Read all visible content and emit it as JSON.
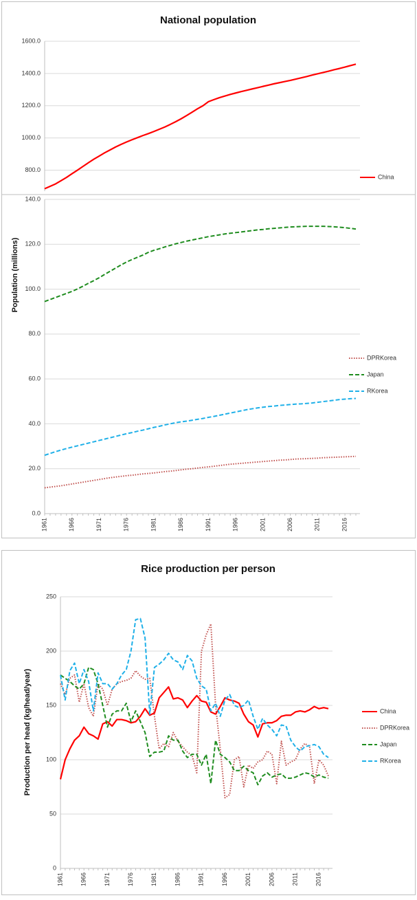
{
  "chart_data": [
    {
      "type": "line",
      "title": "National population",
      "ylim": [
        670,
        1600
      ],
      "yticks": [
        {
          "value": 800,
          "label": "800.0"
        },
        {
          "value": 1000,
          "label": "1000.0"
        },
        {
          "value": 1200,
          "label": "1200.0"
        },
        {
          "value": 1400,
          "label": "1400.0"
        },
        {
          "value": 1600,
          "label": "1600.0"
        }
      ],
      "grid": true,
      "legend": "right",
      "series": [
        {
          "name": "China",
          "color": "#ff0000",
          "dash": "solid",
          "values": [
            685,
            700,
            715,
            735,
            755,
            778,
            800,
            823,
            846,
            868,
            888,
            908,
            926,
            944,
            960,
            975,
            989,
            1002,
            1015,
            1027,
            1040,
            1054,
            1068,
            1084,
            1101,
            1119,
            1139,
            1160,
            1181,
            1200,
            1225,
            1238,
            1250,
            1260,
            1270,
            1279,
            1288,
            1296,
            1304,
            1312,
            1320,
            1328,
            1336,
            1343,
            1350,
            1357,
            1365,
            1373,
            1381,
            1390,
            1398,
            1406,
            1414,
            1423,
            1431,
            1440,
            1449,
            1458
          ]
        }
      ]
    },
    {
      "type": "line",
      "y_label": "Population (millions)",
      "categories": [
        "1961",
        null,
        null,
        null,
        null,
        "1966",
        null,
        null,
        null,
        null,
        "1971",
        null,
        null,
        null,
        null,
        "1976",
        null,
        null,
        null,
        null,
        "1981",
        null,
        null,
        null,
        null,
        "1986",
        null,
        null,
        null,
        null,
        "1991",
        null,
        null,
        null,
        null,
        "1996",
        null,
        null,
        null,
        null,
        "2001",
        null,
        null,
        null,
        null,
        "2006",
        null,
        null,
        null,
        null,
        "2011",
        null,
        null,
        null,
        null,
        "2016",
        null,
        null
      ],
      "ylim": [
        0,
        140
      ],
      "yticks": [
        {
          "value": 0,
          "label": "0.0"
        },
        {
          "value": 20,
          "label": "20.0"
        },
        {
          "value": 40,
          "label": "40.0"
        },
        {
          "value": 60,
          "label": "60.0"
        },
        {
          "value": 80,
          "label": "80.0"
        },
        {
          "value": 100,
          "label": "100.0"
        },
        {
          "value": 120,
          "label": "120.0"
        },
        {
          "value": 140,
          "label": "140.0"
        }
      ],
      "grid": true,
      "legend": "right",
      "series": [
        {
          "name": "DPRKorea",
          "color": "#c0504d",
          "dash": "dotted",
          "values": [
            11.5,
            11.8,
            12.1,
            12.4,
            12.8,
            13.2,
            13.6,
            14.0,
            14.4,
            14.8,
            15.2,
            15.6,
            16.0,
            16.3,
            16.6,
            16.9,
            17.1,
            17.4,
            17.7,
            17.9,
            18.1,
            18.4,
            18.7,
            18.9,
            19.2,
            19.5,
            19.8,
            20.0,
            20.3,
            20.6,
            20.8,
            21.1,
            21.4,
            21.7,
            22.0,
            22.2,
            22.4,
            22.6,
            22.8,
            23.0,
            23.2,
            23.4,
            23.6,
            23.8,
            23.9,
            24.1,
            24.3,
            24.4,
            24.5,
            24.6,
            24.7,
            24.9,
            25.0,
            25.1,
            25.2,
            25.3,
            25.4,
            25.5
          ]
        },
        {
          "name": "Japan",
          "color": "#1e8c1e",
          "dash": "dashed",
          "values": [
            94.5,
            95.4,
            96.3,
            97.2,
            98.1,
            99.0,
            100.1,
            101.3,
            102.6,
            103.8,
            105.1,
            106.6,
            108.0,
            109.4,
            110.8,
            112.1,
            113.2,
            114.2,
            115.2,
            116.4,
            117.3,
            118.0,
            118.8,
            119.5,
            120.2,
            120.8,
            121.4,
            121.9,
            122.4,
            122.9,
            123.4,
            123.8,
            124.2,
            124.6,
            124.9,
            125.2,
            125.5,
            125.8,
            126.1,
            126.4,
            126.6,
            126.9,
            127.1,
            127.3,
            127.5,
            127.7,
            127.8,
            127.9,
            128.0,
            128.0,
            128.0,
            128.0,
            127.9,
            127.8,
            127.6,
            127.4,
            127.1,
            126.8
          ]
        },
        {
          "name": "RKorea",
          "color": "#1fb0e8",
          "dash": "dashed",
          "values": [
            26.0,
            26.8,
            27.6,
            28.3,
            29.0,
            29.6,
            30.2,
            30.8,
            31.4,
            32.0,
            32.6,
            33.2,
            33.8,
            34.4,
            35.0,
            35.6,
            36.1,
            36.7,
            37.2,
            37.8,
            38.4,
            38.9,
            39.5,
            40.0,
            40.5,
            40.9,
            41.2,
            41.6,
            42.0,
            42.4,
            42.9,
            43.3,
            43.8,
            44.3,
            44.8,
            45.3,
            45.8,
            46.3,
            46.7,
            47.1,
            47.4,
            47.7,
            47.9,
            48.2,
            48.4,
            48.6,
            48.8,
            48.9,
            49.1,
            49.3,
            49.6,
            49.9,
            50.2,
            50.5,
            50.8,
            51.0,
            51.2,
            51.3
          ]
        }
      ]
    },
    {
      "type": "line",
      "title": "Rice production per person",
      "y_label": "Production per head (kg/head/year)",
      "categories": [
        "1961",
        null,
        null,
        null,
        null,
        "1966",
        null,
        null,
        null,
        null,
        "1971",
        null,
        null,
        null,
        null,
        "1976",
        null,
        null,
        null,
        null,
        "1981",
        null,
        null,
        null,
        null,
        "1986",
        null,
        null,
        null,
        null,
        "1991",
        null,
        null,
        null,
        null,
        "1996",
        null,
        null,
        null,
        null,
        "2001",
        null,
        null,
        null,
        null,
        "2006",
        null,
        null,
        null,
        null,
        "2011",
        null,
        null,
        null,
        null,
        "2016",
        null,
        null
      ],
      "ylim": [
        0,
        250
      ],
      "yticks": [
        0,
        50,
        100,
        150,
        200,
        250
      ],
      "grid": true,
      "legend": "right",
      "series": [
        {
          "name": "China",
          "color": "#ff0000",
          "dash": "solid",
          "values": [
            82,
            100,
            110,
            118,
            122,
            130,
            124,
            122,
            119,
            133,
            135,
            131,
            137,
            137,
            136,
            134,
            135,
            140,
            147,
            141,
            143,
            157,
            162,
            167,
            156,
            157,
            155,
            148,
            154,
            159,
            154,
            153,
            144,
            142,
            149,
            157,
            155,
            154,
            152,
            142,
            135,
            132,
            121,
            133,
            134,
            134,
            136,
            140,
            141,
            141,
            144,
            145,
            144,
            146,
            149,
            147,
            148,
            147
          ]
        },
        {
          "name": "DPRKorea",
          "color": "#c0504d",
          "dash": "dotted",
          "values": [
            170,
            160,
            175,
            178,
            153,
            170,
            148,
            140,
            170,
            165,
            150,
            165,
            170,
            172,
            173,
            175,
            182,
            177,
            174,
            175,
            140,
            110,
            115,
            112,
            125,
            117,
            112,
            107,
            104,
            88,
            200,
            215,
            225,
            150,
            110,
            65,
            68,
            100,
            103,
            75,
            95,
            92,
            98,
            100,
            108,
            105,
            78,
            117,
            95,
            98,
            100,
            110,
            115,
            112,
            78,
            100,
            95,
            85
          ]
        },
        {
          "name": "Japan",
          "color": "#1e8c1e",
          "dash": "dashed",
          "values": [
            178,
            175,
            172,
            168,
            165,
            170,
            185,
            183,
            170,
            150,
            130,
            142,
            145,
            145,
            152,
            135,
            145,
            135,
            125,
            103,
            107,
            107,
            108,
            122,
            118,
            118,
            108,
            102,
            105,
            105,
            95,
            105,
            78,
            118,
            105,
            102,
            98,
            90,
            90,
            94,
            90,
            88,
            77,
            85,
            88,
            84,
            86,
            87,
            83,
            83,
            84,
            86,
            88,
            87,
            84,
            86,
            84,
            83
          ]
        },
        {
          "name": "RKorea",
          "color": "#1fb0e8",
          "dash": "dashed",
          "values": [
            178,
            155,
            182,
            189,
            170,
            183,
            172,
            145,
            180,
            170,
            170,
            165,
            170,
            178,
            183,
            200,
            229,
            230,
            212,
            142,
            185,
            188,
            192,
            198,
            192,
            190,
            183,
            196,
            191,
            175,
            168,
            165,
            145,
            152,
            140,
            155,
            160,
            150,
            148,
            150,
            155,
            140,
            128,
            138,
            132,
            128,
            122,
            132,
            131,
            118,
            112,
            108,
            112,
            113,
            114,
            112,
            105,
            102
          ]
        }
      ]
    }
  ]
}
